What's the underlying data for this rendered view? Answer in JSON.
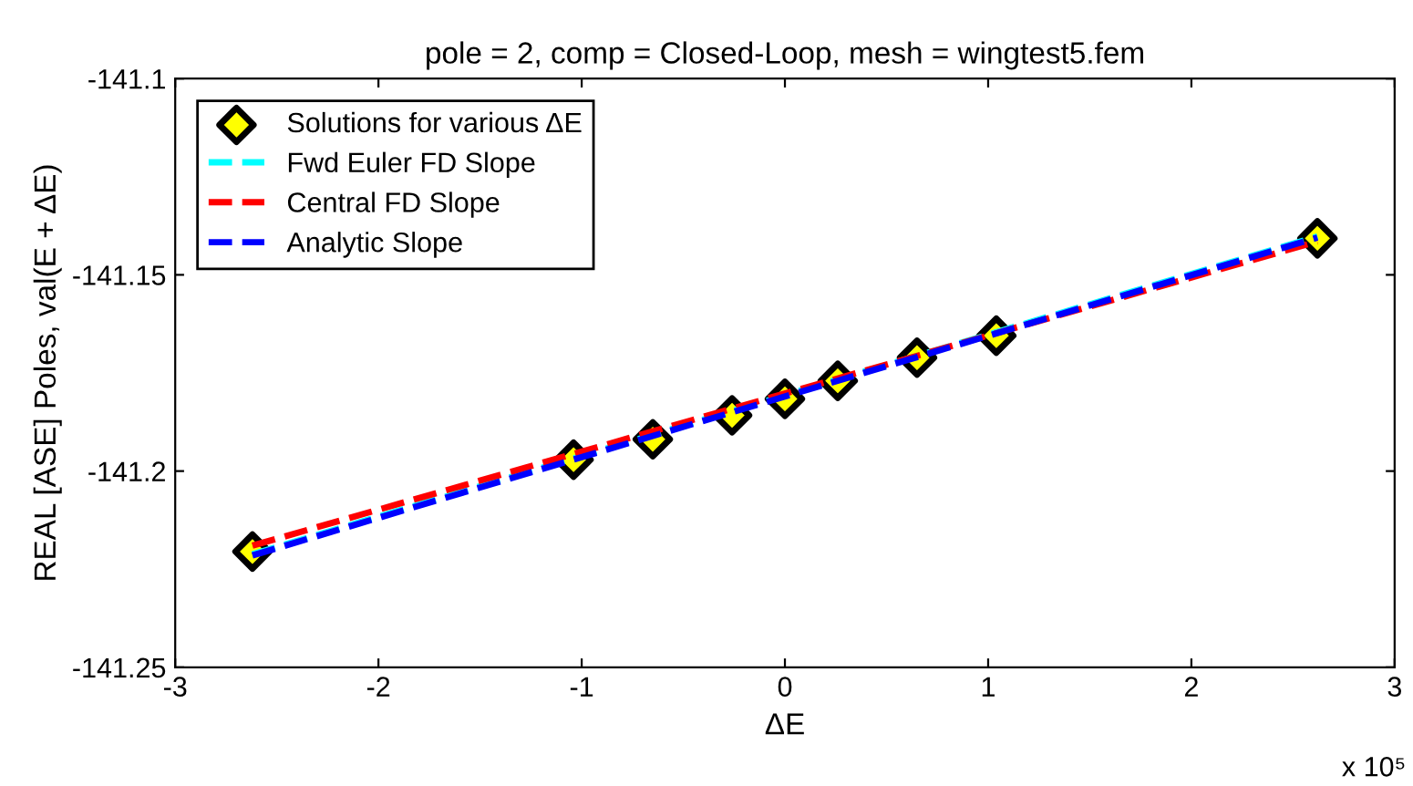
{
  "chart_data": {
    "type": "scatter",
    "title": "pole = 2, comp = Closed-Loop, mesh = wingtest5.fem",
    "xlabel": "ΔE",
    "ylabel": "REAL [ASE] Poles, val(E + ΔE)",
    "annotations": [
      "x 10⁵"
    ],
    "xlim": [
      -3,
      3
    ],
    "xticks": [
      -3,
      -2,
      -1,
      0,
      1,
      2,
      3
    ],
    "ylim": [
      -141.25,
      -141.1
    ],
    "yticks": [
      -141.25,
      -141.2,
      -141.15,
      -141.1
    ],
    "grid": false,
    "legend": "top left",
    "series": [
      {
        "name": "Solutions for various ΔE",
        "marker": "diamond",
        "color": "#ffff00",
        "x": [
          -2.62,
          -1.04,
          -0.65,
          -0.26,
          0,
          0.26,
          0.65,
          1.04,
          2.62
        ],
        "values": [
          -141.2205,
          -141.1971,
          -141.1919,
          -141.1858,
          -141.1816,
          -141.177,
          -141.1711,
          -141.1655,
          -141.1407
        ]
      },
      {
        "name": "Fwd Euler FD Slope",
        "type": "line",
        "line_style": "dashed",
        "marker": "none",
        "color": "#00ffff",
        "x": [
          -2.62,
          2.62
        ],
        "values": [
          -141.2212,
          -141.1402
        ]
      },
      {
        "name": "Central FD Slope",
        "type": "line",
        "line_style": "dashed",
        "marker": "none",
        "color": "#ff0000",
        "x": [
          -2.62,
          2.62
        ],
        "values": [
          -141.219,
          -141.1415
        ]
      },
      {
        "name": "Analytic Slope",
        "type": "line",
        "line_style": "dashed",
        "marker": "none",
        "color": "#0000ff",
        "x": [
          -2.62,
          2.62
        ],
        "values": [
          -141.2215,
          -141.1405
        ]
      }
    ]
  }
}
